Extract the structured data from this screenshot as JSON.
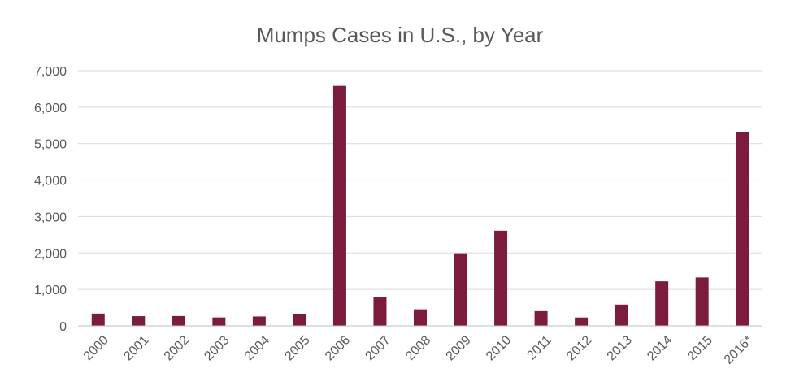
{
  "chart_data": {
    "type": "bar",
    "title": "Mumps Cases in U.S., by Year",
    "xlabel": "",
    "ylabel": "",
    "categories": [
      "2000",
      "2001",
      "2002",
      "2003",
      "2004",
      "2005",
      "2006",
      "2007",
      "2008",
      "2009",
      "2010",
      "2011",
      "2012",
      "2013",
      "2014",
      "2015",
      "2016*"
    ],
    "values": [
      338,
      266,
      270,
      231,
      258,
      314,
      6584,
      800,
      454,
      1991,
      2612,
      404,
      229,
      584,
      1223,
      1329,
      5311
    ],
    "ylim": [
      0,
      7000
    ],
    "yticks": [
      0,
      1000,
      2000,
      3000,
      4000,
      5000,
      6000,
      7000
    ],
    "ytick_labels": [
      "0",
      "1,000",
      "2,000",
      "3,000",
      "4,000",
      "5,000",
      "6,000",
      "7,000"
    ],
    "grid": true,
    "legend": "none",
    "bar_color": "#7b1c3e"
  }
}
